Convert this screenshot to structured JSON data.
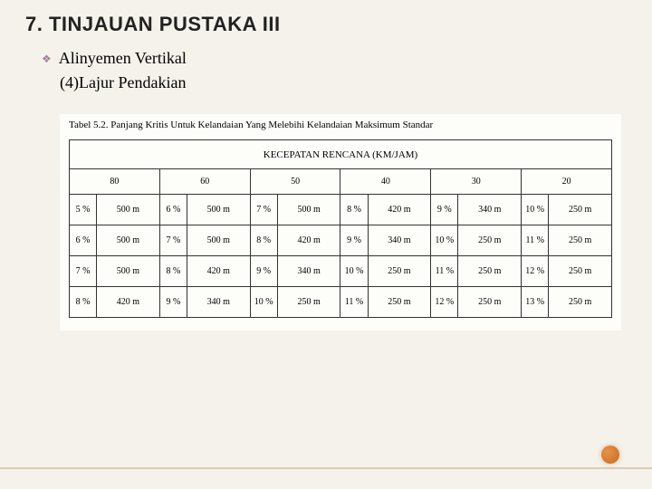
{
  "title": "7. TINJAUAN PUSTAKA III",
  "bullet": "Alinyemen Vertikal",
  "subline": "(4)Lajur Pendakian",
  "table": {
    "caption": "Tabel 5.2. Panjang Kritis Untuk Kelandaian Yang Melebihi Kelandaian Maksimum Standar",
    "header": "KECEPATAN RENCANA (KM/JAM)",
    "speeds": [
      "80",
      "60",
      "50",
      "40",
      "30",
      "20"
    ],
    "rows": [
      [
        {
          "p": "5 %",
          "v": "500 m"
        },
        {
          "p": "6 %",
          "v": "500 m"
        },
        {
          "p": "7 %",
          "v": "500 m"
        },
        {
          "p": "8 %",
          "v": "420 m"
        },
        {
          "p": "9 %",
          "v": "340 m"
        },
        {
          "p": "10 %",
          "v": "250 m"
        }
      ],
      [
        {
          "p": "6 %",
          "v": "500 m"
        },
        {
          "p": "7 %",
          "v": "500 m"
        },
        {
          "p": "8 %",
          "v": "420 m"
        },
        {
          "p": "9 %",
          "v": "340 m"
        },
        {
          "p": "10 %",
          "v": "250 m"
        },
        {
          "p": "11 %",
          "v": "250 m"
        }
      ],
      [
        {
          "p": "7 %",
          "v": "500 m"
        },
        {
          "p": "8 %",
          "v": "420 m"
        },
        {
          "p": "9 %",
          "v": "340 m"
        },
        {
          "p": "10 %",
          "v": "250 m"
        },
        {
          "p": "11 %",
          "v": "250 m"
        },
        {
          "p": "12 %",
          "v": "250 m"
        }
      ],
      [
        {
          "p": "8 %",
          "v": "420 m"
        },
        {
          "p": "9 %",
          "v": "340 m"
        },
        {
          "p": "10 %",
          "v": "250 m"
        },
        {
          "p": "11 %",
          "v": "250 m"
        },
        {
          "p": "12 %",
          "v": "250 m"
        },
        {
          "p": "13 %",
          "v": "250 m"
        }
      ]
    ]
  },
  "colors": {
    "background": "#f5f2eb",
    "table_bg": "#fdfdfa",
    "border": "#333333",
    "accent": "#c46a1e",
    "line": "#d8cdb8"
  }
}
